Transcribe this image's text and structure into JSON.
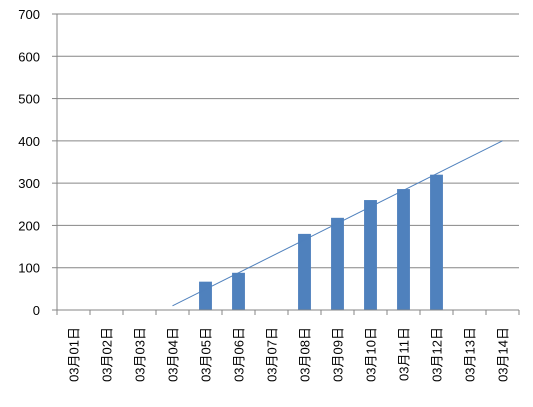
{
  "chart_data": {
    "type": "bar",
    "categories": [
      "03月01日",
      "03月02日",
      "03月03日",
      "03月04日",
      "03月05日",
      "03月06日",
      "03月07日",
      "03月08日",
      "03月09日",
      "03月10日",
      "03月11日",
      "03月12日",
      "03月13日",
      "03月14日"
    ],
    "series": [
      {
        "values": [
          null,
          null,
          null,
          null,
          67,
          88,
          null,
          180,
          218,
          260,
          286,
          320,
          null,
          null
        ],
        "color": "#4f81bd"
      }
    ],
    "trendline": {
      "type": "linear",
      "from": {
        "category": "03月04日",
        "y": 10
      },
      "to": {
        "category": "03月14日",
        "y": 400
      },
      "color": "#4f81bd"
    },
    "yticks": [
      "0",
      "100",
      "200",
      "300",
      "400",
      "500",
      "600",
      "700"
    ],
    "ylim": [
      0,
      700
    ],
    "grid": true,
    "legend": "none",
    "title": "",
    "xlabel": "",
    "ylabel": ""
  }
}
